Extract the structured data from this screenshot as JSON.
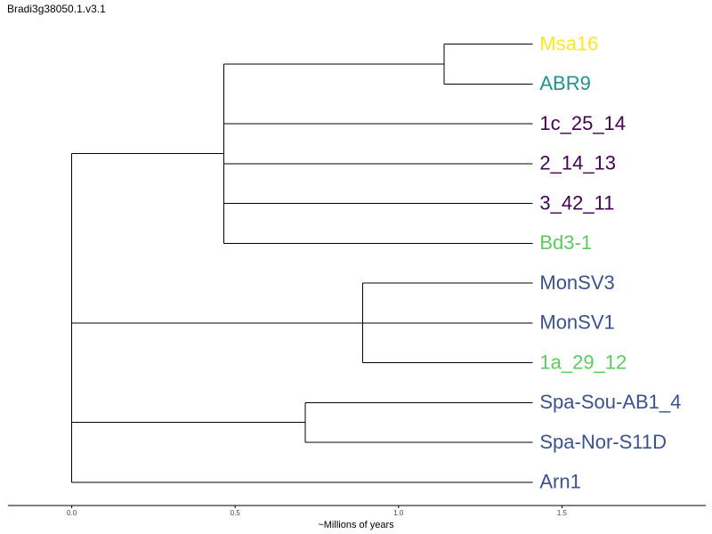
{
  "chart_data": {
    "type": "dendrogram",
    "title": "Bradi3g38050.1.v3.1",
    "xlabel": "~Millions of years",
    "xlim": [
      -0.195,
      1.94
    ],
    "xticks": [
      0.0,
      0.5,
      1.0,
      1.5
    ],
    "xtick_labels": [
      "0.0",
      "0.5",
      "1.0",
      "1.5"
    ],
    "leaf_age": 1.41,
    "leaves": [
      {
        "id": "msa16",
        "label": "Msa16",
        "color": "#fde725"
      },
      {
        "id": "abr9",
        "label": "ABR9",
        "color": "#21918c"
      },
      {
        "id": "1c_25_14",
        "label": "1c_25_14",
        "color": "#440154"
      },
      {
        "id": "2_14_13",
        "label": "2_14_13",
        "color": "#440154"
      },
      {
        "id": "3_42_11",
        "label": "3_42_11",
        "color": "#440154"
      },
      {
        "id": "bd3_1",
        "label": "Bd3-1",
        "color": "#5ec962"
      },
      {
        "id": "monsv3",
        "label": "MonSV3",
        "color": "#3b528b"
      },
      {
        "id": "monsv1",
        "label": "MonSV1",
        "color": "#3b528b"
      },
      {
        "id": "1a_29_12",
        "label": "1a_29_12",
        "color": "#5ec962"
      },
      {
        "id": "spa_sou_ab1_4",
        "label": "Spa-Sou-AB1_4",
        "color": "#3b528b"
      },
      {
        "id": "spa_nor_s11d",
        "label": "Spa-Nor-S11D",
        "color": "#3b528b"
      },
      {
        "id": "arn1",
        "label": "Arn1",
        "color": "#3b528b"
      }
    ],
    "nodes": [
      {
        "id": "n_msa_abr",
        "age": 1.14,
        "children": [
          "msa16",
          "abr9"
        ]
      },
      {
        "id": "n_clade_a",
        "age": 0.465,
        "children": [
          "n_msa_abr",
          "1c_25_14",
          "2_14_13",
          "3_42_11",
          "bd3_1"
        ]
      },
      {
        "id": "n_mon",
        "age": 0.89,
        "children": [
          "monsv3",
          "monsv1",
          "1a_29_12"
        ]
      },
      {
        "id": "n_spa",
        "age": 0.715,
        "children": [
          "spa_sou_ab1_4",
          "spa_nor_s11d"
        ]
      },
      {
        "id": "n_root",
        "age": 0.0,
        "children": [
          "n_clade_a",
          "n_mon",
          "n_spa",
          "arn1"
        ]
      }
    ],
    "root": "n_root"
  }
}
